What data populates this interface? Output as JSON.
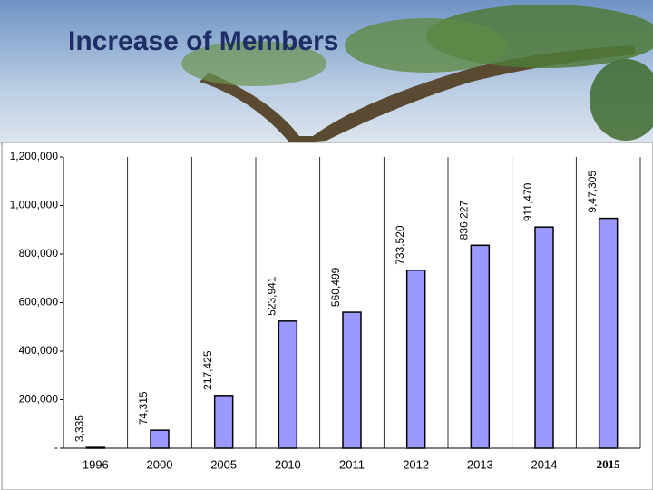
{
  "chart_data": {
    "type": "bar",
    "title": "Increase of Members",
    "categories": [
      "1996",
      "2000",
      "2005",
      "2010",
      "2011",
      "2012",
      "2013",
      "2014",
      "2015"
    ],
    "values": [
      3335,
      74315,
      217425,
      523941,
      560499,
      733520,
      836227,
      911470,
      947305
    ],
    "value_labels": [
      "3,335",
      "74,315",
      "217,425",
      "523,941",
      "560,499",
      "733,520",
      "836,227",
      "911,470",
      "9,47,305"
    ],
    "color": "#9999ff",
    "ylim": [
      0,
      1200000
    ],
    "yticks": [
      {
        "value": 0,
        "label": "-"
      },
      {
        "value": 200000,
        "label": "200,000"
      },
      {
        "value": 400000,
        "label": "400,000"
      },
      {
        "value": 600000,
        "label": "600,000"
      },
      {
        "value": 800000,
        "label": "800,000"
      },
      {
        "value": 1000000,
        "label": "1,000,000"
      },
      {
        "value": 1200000,
        "label": "1,200,000"
      }
    ],
    "grid": true
  }
}
